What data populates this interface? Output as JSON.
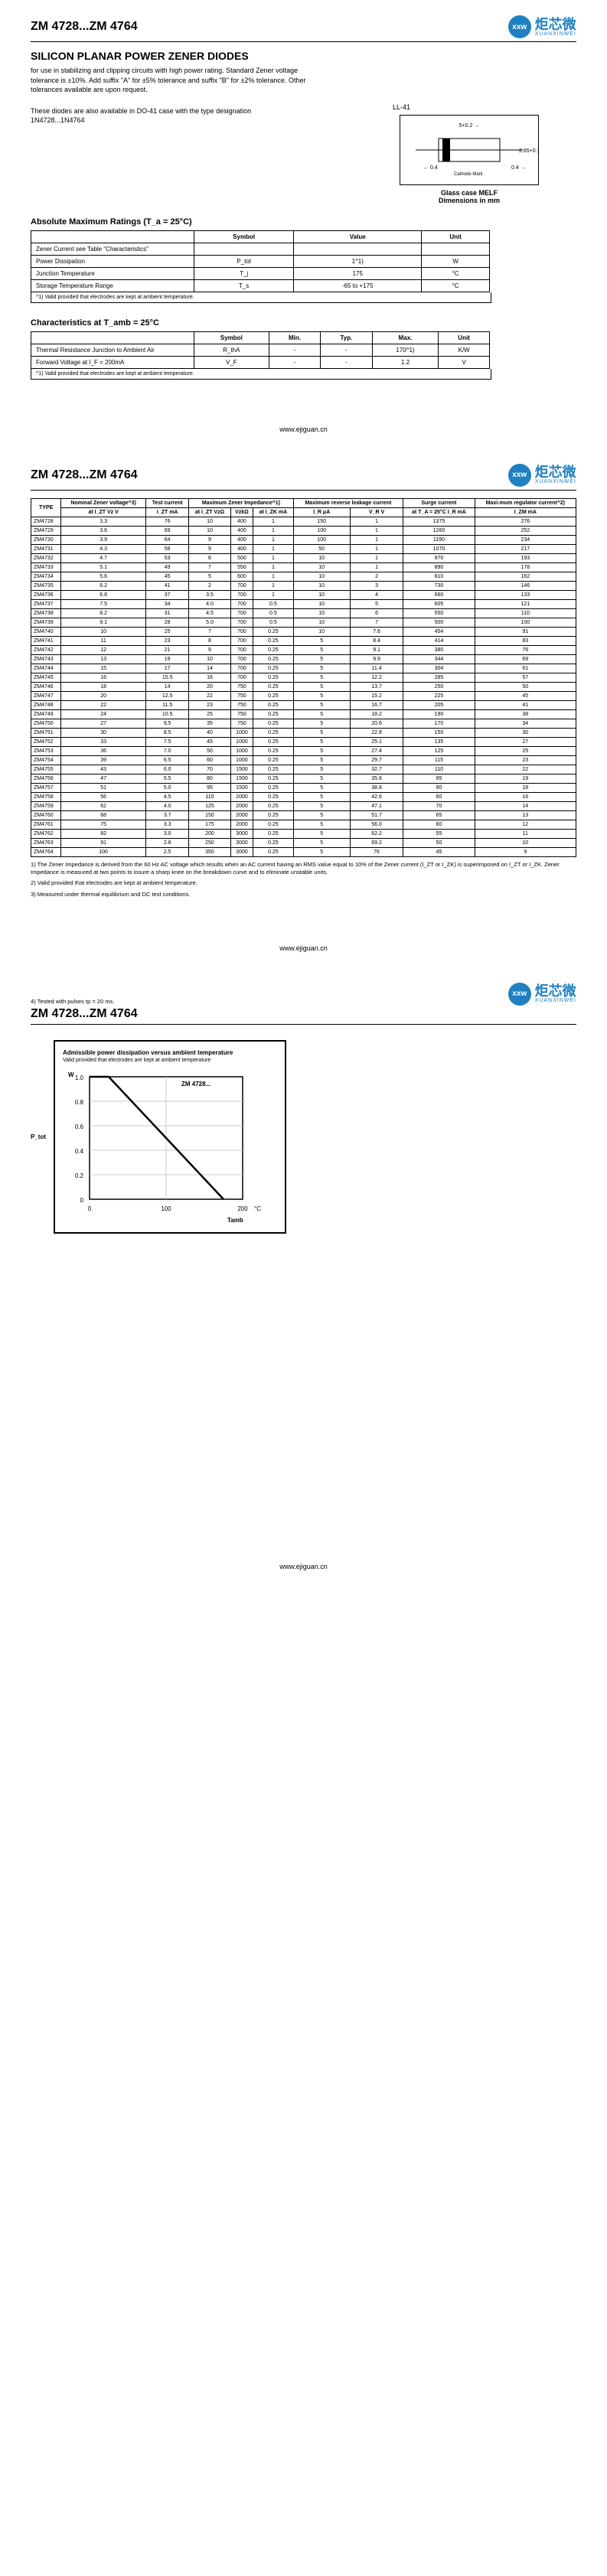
{
  "part_range": "ZM 4728...ZM 4764",
  "logo": {
    "cn": "炬芯微",
    "en": "XUANXINWEI"
  },
  "title": "SILICON PLANAR POWER ZENER DIODES",
  "desc1": "for use in stabilizing and clipping circuits with high power rating. Standard Zener voltage tolerance is ±10%. Add suffix \"A\" for ±5% tolerance and suffix \"B\" for ±2% tolerance. Other tolerances available are upon request.",
  "desc2": "These diodes are also available in DO-41 case with the type designation 1N4728...1N4764",
  "pkg_label": "LL-41",
  "pkg_case": "Glass case MELF",
  "pkg_dim": "Dimensions in mm",
  "abs_title": "Absolute Maximum Ratings (T_a = 25°C)",
  "abs_head": [
    "",
    "Symbol",
    "Value",
    "Unit"
  ],
  "abs_rows": [
    [
      "Zener Current see Table \"Characteristics\"",
      "",
      "",
      ""
    ],
    [
      "Power Dissipation",
      "P_tot",
      "1^1)",
      "W"
    ],
    [
      "Junction Temperature",
      "T_j",
      "175",
      "°C"
    ],
    [
      "Storage Temperature Range",
      "T_s",
      "-65 to +175",
      "°C"
    ]
  ],
  "abs_foot": "^1) Valid provided that electrodes are kept at ambient temperature.",
  "char_title": "Characteristics at T_amb = 25°C",
  "char_head": [
    "",
    "Symbol",
    "Min.",
    "Typ.",
    "Max.",
    "Unit"
  ],
  "char_rows": [
    [
      "Thermal Resistance Junction to Ambient Air",
      "R_thA",
      "-",
      "-",
      "170^1)",
      "K/W"
    ],
    [
      "Forward Voltage at I_F = 200mA",
      "V_F",
      "-",
      "-",
      "1.2",
      "V"
    ]
  ],
  "char_foot": "^1) Valid provided that electrodes are kept at ambient temperature.",
  "footer_url": "www.ejiguan.cn",
  "main_head_top": [
    "TYPE",
    "Nominal Zener voltage^3)",
    "Test current",
    "Maximum Zener Impedance^1)",
    "",
    "Maximum reverse leakage current",
    "",
    "Surge current",
    "Maxi-mum regulator current^2)"
  ],
  "main_head_sub": [
    "",
    "at I_ZT Vz V",
    "I_ZT mA",
    "at I_ZT VzΩ",
    "VzkΩ",
    "at I_ZK mA",
    "I_R μA",
    "V_R V",
    "at T_A = 25°C I_R mA",
    "I_ZM mA"
  ],
  "main_rows": [
    [
      "ZM4728",
      "3.3",
      "76",
      "10",
      "400",
      "1",
      "150",
      "1",
      "1375",
      "276"
    ],
    [
      "ZM4729",
      "3.6",
      "69",
      "10",
      "400",
      "1",
      "100",
      "1",
      "1260",
      "252"
    ],
    [
      "ZM4730",
      "3.9",
      "64",
      "9",
      "400",
      "1",
      "100",
      "1",
      "1190",
      "234"
    ],
    [
      "ZM4731",
      "4.3",
      "58",
      "9",
      "400",
      "1",
      "50",
      "1",
      "1070",
      "217"
    ],
    [
      "ZM4732",
      "4.7",
      "53",
      "8",
      "500",
      "1",
      "10",
      "1",
      "970",
      "193"
    ],
    [
      "ZM4733",
      "5.1",
      "49",
      "7",
      "550",
      "1",
      "10",
      "1",
      "890",
      "178"
    ],
    [
      "ZM4734",
      "5.6",
      "45",
      "5",
      "600",
      "1",
      "10",
      "2",
      "810",
      "162"
    ],
    [
      "ZM4735",
      "6.2",
      "41",
      "2",
      "700",
      "1",
      "10",
      "3",
      "730",
      "146"
    ],
    [
      "ZM4736",
      "6.8",
      "37",
      "3.5",
      "700",
      "1",
      "10",
      "4",
      "660",
      "133"
    ],
    [
      "ZM4737",
      "7.5",
      "34",
      "4.0",
      "700",
      "0.5",
      "10",
      "5",
      "605",
      "121"
    ],
    [
      "ZM4738",
      "8.2",
      "31",
      "4.5",
      "700",
      "0.5",
      "10",
      "6",
      "550",
      "110"
    ],
    [
      "ZM4739",
      "9.1",
      "28",
      "5.0",
      "700",
      "0.5",
      "10",
      "7",
      "500",
      "100"
    ],
    [
      "ZM4740",
      "10",
      "25",
      "7",
      "700",
      "0.25",
      "10",
      "7.6",
      "454",
      "91"
    ],
    [
      "ZM4741",
      "11",
      "23",
      "8",
      "700",
      "0.25",
      "5",
      "8.4",
      "414",
      "83"
    ],
    [
      "ZM4742",
      "12",
      "21",
      "9",
      "700",
      "0.25",
      "5",
      "9.1",
      "380",
      "76"
    ],
    [
      "ZM4743",
      "13",
      "19",
      "10",
      "700",
      "0.25",
      "5",
      "9.9",
      "344",
      "69"
    ],
    [
      "ZM4744",
      "15",
      "17",
      "14",
      "700",
      "0.25",
      "5",
      "11.4",
      "304",
      "61"
    ],
    [
      "ZM4745",
      "16",
      "15.5",
      "16",
      "700",
      "0.25",
      "5",
      "12.2",
      "285",
      "57"
    ],
    [
      "ZM4746",
      "18",
      "14",
      "20",
      "750",
      "0.25",
      "5",
      "13.7",
      "250",
      "50"
    ],
    [
      "ZM4747",
      "20",
      "12.5",
      "22",
      "750",
      "0.25",
      "5",
      "15.2",
      "225",
      "45"
    ],
    [
      "ZM4748",
      "22",
      "11.5",
      "23",
      "750",
      "0.25",
      "5",
      "16.7",
      "205",
      "41"
    ],
    [
      "ZM4749",
      "24",
      "10.5",
      "25",
      "750",
      "0.25",
      "5",
      "18.2",
      "190",
      "38"
    ],
    [
      "ZM4750",
      "27",
      "9.5",
      "35",
      "750",
      "0.25",
      "5",
      "20.6",
      "170",
      "34"
    ],
    [
      "ZM4751",
      "30",
      "8.5",
      "40",
      "1000",
      "0.25",
      "5",
      "22.8",
      "150",
      "30"
    ],
    [
      "ZM4752",
      "33",
      "7.5",
      "45",
      "1000",
      "0.25",
      "5",
      "25.1",
      "135",
      "27"
    ],
    [
      "ZM4753",
      "36",
      "7.0",
      "50",
      "1000",
      "0.25",
      "5",
      "27.4",
      "125",
      "25"
    ],
    [
      "ZM4754",
      "39",
      "6.5",
      "60",
      "1000",
      "0.25",
      "5",
      "29.7",
      "115",
      "23"
    ],
    [
      "ZM4755",
      "43",
      "6.0",
      "70",
      "1500",
      "0.25",
      "5",
      "32.7",
      "110",
      "22"
    ],
    [
      "ZM4756",
      "47",
      "5.5",
      "80",
      "1500",
      "0.25",
      "5",
      "35.8",
      "95",
      "19"
    ],
    [
      "ZM4757",
      "51",
      "5.0",
      "95",
      "1500",
      "0.25",
      "5",
      "38.8",
      "90",
      "18"
    ],
    [
      "ZM4758",
      "56",
      "4.5",
      "110",
      "2000",
      "0.25",
      "5",
      "42.6",
      "80",
      "16"
    ],
    [
      "ZM4759",
      "62",
      "4.0",
      "125",
      "2000",
      "0.25",
      "5",
      "47.1",
      "70",
      "14"
    ],
    [
      "ZM4760",
      "68",
      "3.7",
      "150",
      "2000",
      "0.25",
      "5",
      "51.7",
      "65",
      "13"
    ],
    [
      "ZM4761",
      "75",
      "3.3",
      "175",
      "2000",
      "0.25",
      "5",
      "56.0",
      "60",
      "12"
    ],
    [
      "ZM4762",
      "82",
      "3.0",
      "200",
      "3000",
      "0.25",
      "5",
      "62.2",
      "55",
      "11"
    ],
    [
      "ZM4763",
      "91",
      "2.8",
      "250",
      "3000",
      "0.25",
      "5",
      "69.2",
      "50",
      "10"
    ],
    [
      "ZM4764",
      "100",
      "2.5",
      "350",
      "3000",
      "0.25",
      "5",
      "76",
      "45",
      "9"
    ]
  ],
  "note1": "1) The Zener Impedance is derived from the 60 Hz AC voltage which results when an AC current having an RMS value equal to 10% of the Zener current (I_ZT or I_ZK) is superimposed on I_ZT or I_ZK. Zener Impedance is measured at two points to insure a sharp knee on the breakdown curve and to eliminate unstable units.",
  "note2": "2) Valid provided that electrodes are kept at ambient temperature.",
  "note3": "3) Measured under thermal equilibrium and DC test conditions.",
  "note4": "4) Tested with pulses tp = 20 ms.",
  "chart": {
    "title": "Admissible power dissipation versus ambient temperature",
    "sub": "Valid provided that electrodes are kept at ambient temperature",
    "ylabel": "P_tot",
    "yunit": "W",
    "xunit": "°C",
    "xlabel": "Tamb",
    "series": "ZM 4728...",
    "xlim": [
      0,
      200
    ],
    "ylim": [
      0,
      1.0
    ],
    "ymarks": [
      "1.0",
      "0.8",
      "0.6",
      "0.4",
      "0.2",
      "0"
    ],
    "xmarks": [
      "0",
      "100",
      "200"
    ],
    "points": [
      [
        0,
        1.0
      ],
      [
        25,
        1.0
      ],
      [
        175,
        0
      ]
    ]
  }
}
